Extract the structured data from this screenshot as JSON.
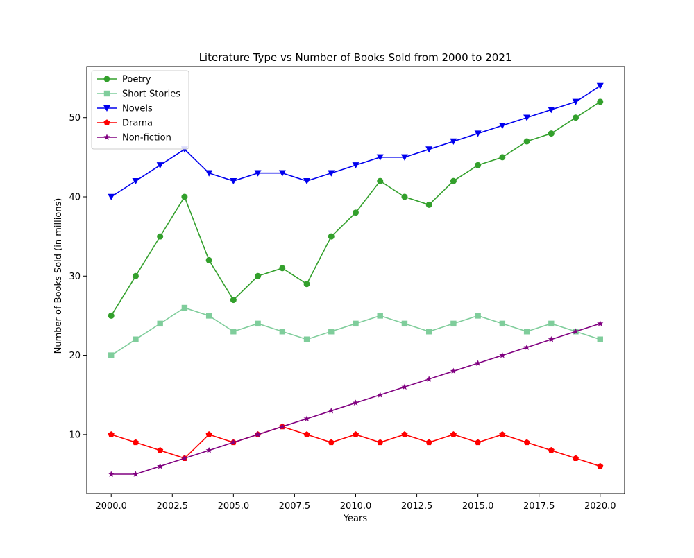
{
  "chart_data": {
    "type": "line",
    "title": "Literature Type vs Number of Books Sold from 2000 to 2021",
    "xlabel": "Years",
    "ylabel": "Number of Books Sold (in millions)",
    "xlim": [
      1999.0,
      2021.0
    ],
    "ylim": [
      2.55,
      56.45
    ],
    "x_ticks": [
      2000.0,
      2002.5,
      2005.0,
      2007.5,
      2010.0,
      2012.5,
      2015.0,
      2017.5,
      2020.0
    ],
    "x_tick_labels": [
      "2000.0",
      "2002.5",
      "2005.0",
      "2007.5",
      "2010.0",
      "2012.5",
      "2015.0",
      "2017.5",
      "2020.0"
    ],
    "y_ticks": [
      10,
      20,
      30,
      40,
      50
    ],
    "y_tick_labels": [
      "10",
      "20",
      "30",
      "40",
      "50"
    ],
    "grid": false,
    "legend_position": "top-left",
    "x": [
      2000,
      2001,
      2002,
      2003,
      2004,
      2005,
      2006,
      2007,
      2008,
      2009,
      2010,
      2011,
      2012,
      2013,
      2014,
      2015,
      2016,
      2017,
      2018,
      2019,
      2020
    ],
    "series": [
      {
        "name": "Poetry",
        "color": "#33a02c",
        "marker": "circle",
        "values": [
          25,
          30,
          35,
          40,
          32,
          27,
          30,
          31,
          29,
          35,
          38,
          42,
          40,
          39,
          42,
          44,
          45,
          47,
          48,
          50,
          52
        ]
      },
      {
        "name": "Short Stories",
        "color": "#7fcd9b",
        "marker": "square",
        "values": [
          20,
          22,
          24,
          26,
          25,
          23,
          24,
          23,
          22,
          23,
          24,
          25,
          24,
          23,
          24,
          25,
          24,
          23,
          24,
          23,
          22
        ]
      },
      {
        "name": "Novels",
        "color": "#0000ee",
        "marker": "triangle-down",
        "values": [
          40,
          42,
          44,
          46,
          43,
          42,
          43,
          43,
          42,
          43,
          44,
          45,
          45,
          46,
          47,
          48,
          49,
          50,
          51,
          52,
          54
        ]
      },
      {
        "name": "Drama",
        "color": "#ff0000",
        "marker": "pentagon",
        "values": [
          10,
          9,
          8,
          7,
          10,
          9,
          10,
          11,
          10,
          9,
          10,
          9,
          10,
          9,
          10,
          9,
          10,
          9,
          8,
          7,
          6
        ]
      },
      {
        "name": "Non-fiction",
        "color": "#800080",
        "marker": "star",
        "values": [
          5,
          5,
          6,
          7,
          8,
          9,
          10,
          11,
          12,
          13,
          14,
          15,
          16,
          17,
          18,
          19,
          20,
          21,
          22,
          23,
          24
        ]
      }
    ]
  }
}
